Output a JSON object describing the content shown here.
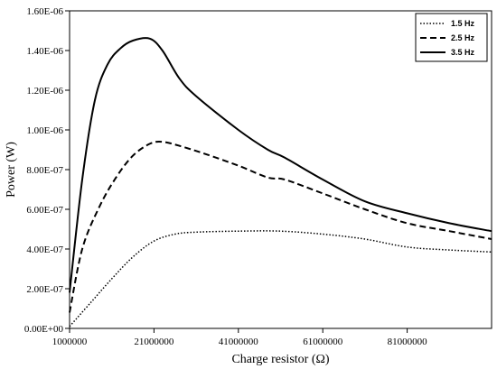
{
  "chart_data": {
    "type": "line",
    "title": "",
    "xlabel": "Charge resistor (Ω)",
    "ylabel": "Power (W)",
    "xlim": [
      1000000,
      101000000
    ],
    "ylim": [
      0,
      1.6e-06
    ],
    "x_ticks": [
      1000000,
      21000000,
      41000000,
      61000000,
      81000000
    ],
    "x_tick_labels": [
      "1000000",
      "21000000",
      "41000000",
      "61000000",
      "81000000"
    ],
    "y_ticks": [
      0,
      2e-07,
      4e-07,
      6e-07,
      8e-07,
      1e-06,
      1.2e-06,
      1.4e-06,
      1.6e-06
    ],
    "y_tick_labels": [
      "0.00E+00",
      "2.00E-07",
      "4.00E-07",
      "6.00E-07",
      "8.00E-07",
      "1.00E-06",
      "1.20E-06",
      "1.40E-06",
      "1.60E-06"
    ],
    "grid": false,
    "legend_position": "top-right",
    "series": [
      {
        "name": "1.5 Hz",
        "style": "dotted",
        "color": "#000000",
        "x": [
          1000000,
          6000000,
          11000000,
          16000000,
          21000000,
          26000000,
          31000000,
          41000000,
          51000000,
          61000000,
          71000000,
          81000000,
          91000000,
          101000000
        ],
        "y": [
          1e-08,
          1.3e-07,
          2.5e-07,
          3.6e-07,
          4.4e-07,
          4.75e-07,
          4.85e-07,
          4.9e-07,
          4.9e-07,
          4.75e-07,
          4.5e-07,
          4.1e-07,
          3.95e-07,
          3.85e-07
        ]
      },
      {
        "name": "2.5 Hz",
        "style": "dashed",
        "color": "#000000",
        "x": [
          1000000,
          4000000,
          8000000,
          12000000,
          16000000,
          20000000,
          23000000,
          27000000,
          33000000,
          41000000,
          48000000,
          52000000,
          61000000,
          71000000,
          81000000,
          91000000,
          101000000
        ],
        "y": [
          8e-08,
          4e-07,
          6.1e-07,
          7.6e-07,
          8.7e-07,
          9.3e-07,
          9.4e-07,
          9.2e-07,
          8.8e-07,
          8.2e-07,
          7.6e-07,
          7.5e-07,
          6.8e-07,
          6e-07,
          5.3e-07,
          4.9e-07,
          4.5e-07
        ]
      },
      {
        "name": "3.5 Hz",
        "style": "solid",
        "color": "#000000",
        "x": [
          1000000,
          4000000,
          7000000,
          10000000,
          13000000,
          16000000,
          20000000,
          23000000,
          27000000,
          31000000,
          41000000,
          48000000,
          52000000,
          61000000,
          71000000,
          81000000,
          91000000,
          101000000
        ],
        "y": [
          1.8e-07,
          7.5e-07,
          1.15e-06,
          1.33e-06,
          1.41e-06,
          1.45e-06,
          1.46e-06,
          1.4e-06,
          1.26e-06,
          1.17e-06,
          1e-06,
          9e-07,
          8.6e-07,
          7.5e-07,
          6.4e-07,
          5.8e-07,
          5.3e-07,
          4.9e-07
        ]
      }
    ]
  }
}
